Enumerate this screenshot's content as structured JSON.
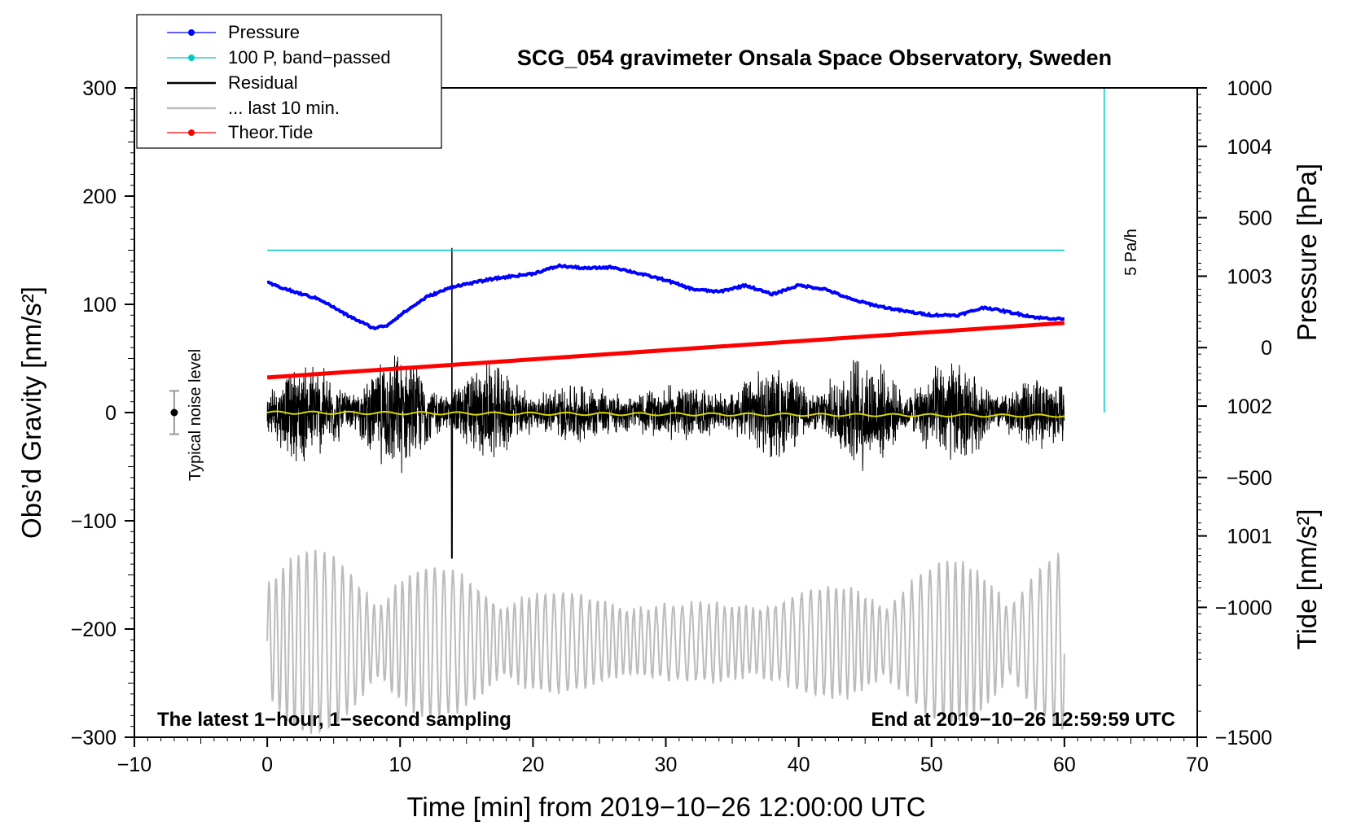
{
  "chart_data": {
    "type": "line",
    "title": "SCG_054 gravimeter Onsala Space Observatory, Sweden",
    "xlabel": "Time [min] from 2019−10−26 12:00:00 UTC",
    "ylabel": "Obs’d Gravity [nm/s²]",
    "ylabel_right_upper": "Pressure [hPa]",
    "ylabel_right_lower": "Tide [nm/s²]",
    "xlim": [
      -10,
      70
    ],
    "ylim": [
      -300,
      300
    ],
    "x_ticks": [
      -10,
      0,
      10,
      20,
      30,
      40,
      50,
      60,
      70
    ],
    "x_tick_labels": [
      "−10",
      "0",
      "10",
      "20",
      "30",
      "40",
      "50",
      "60",
      "70"
    ],
    "y_ticks": [
      300,
      200,
      100,
      0,
      -100,
      -200,
      -300
    ],
    "y_tick_labels": [
      "300",
      "200",
      "100",
      "0",
      "−100",
      "−200",
      "−300"
    ],
    "pressure_ticks": [
      1004,
      1003,
      1002,
      1001
    ],
    "pressure_tick_labels": [
      "1004",
      "1003",
      "1002",
      "1001"
    ],
    "pressure_axis_range_hPa": [
      999.45,
      1004.45
    ],
    "tide_ticks": [
      1000,
      500,
      0,
      -500,
      -1000,
      -1500
    ],
    "tide_tick_labels": [
      "1000",
      "500",
      "0",
      "−500",
      "−1000",
      "−1500"
    ],
    "tide_axis_range_nm_s2": [
      -1500,
      1000
    ],
    "legend": [
      {
        "label": "Pressure",
        "color": "#0000ff",
        "marker": true
      },
      {
        "label": "100 P, band−passed",
        "color": "#00c8c8",
        "marker": true
      },
      {
        "label": "Residual",
        "color": "#000000",
        "marker": false
      },
      {
        "label": "... last 10 min.",
        "color": "#bbbbbb",
        "marker": false
      },
      {
        "label": "Theor.Tide",
        "color": "#ff0000",
        "marker": true
      }
    ],
    "series": [
      {
        "name": "Pressure",
        "unit": "hPa",
        "color": "#0000ff",
        "x": [
          0,
          2,
          4,
          6,
          8,
          9,
          10,
          12,
          14,
          17,
          20,
          22,
          24,
          26,
          28,
          30,
          32,
          34,
          36,
          38,
          40,
          42,
          44,
          46,
          48,
          50,
          52,
          54,
          56,
          58,
          60
        ],
        "values": [
          1002.95,
          1002.88,
          1002.82,
          1002.7,
          1002.6,
          1002.62,
          1002.7,
          1002.84,
          1002.92,
          1002.98,
          1003.02,
          1003.08,
          1003.06,
          1003.07,
          1003.02,
          1002.97,
          1002.9,
          1002.88,
          1002.93,
          1002.86,
          1002.93,
          1002.9,
          1002.82,
          1002.77,
          1002.73,
          1002.7,
          1002.7,
          1002.76,
          1002.72,
          1002.68,
          1002.67
        ]
      },
      {
        "name": "100 P, band−passed",
        "unit": "nm/s²",
        "color": "#00c8c8",
        "x": [
          0,
          60
        ],
        "values": [
          150,
          150
        ]
      },
      {
        "name": "Residual",
        "unit": "nm/s²",
        "color": "#000000",
        "x": [
          0,
          60
        ],
        "envelope_note": "1-second noisy residual, peaks near minute 13.9",
        "max": 152,
        "min": -135
      },
      {
        "name": "... last 10 min.",
        "unit": "nm/s²",
        "color": "#bbbbbb",
        "x": [
          0,
          60
        ],
        "center": -212,
        "amplitude_max": 85
      },
      {
        "name": "Theor.Tide",
        "unit": "nm/s²",
        "color": "#ff0000",
        "x": [
          0,
          60
        ],
        "values": [
          -115,
          95
        ]
      },
      {
        "name": "Mean residual",
        "unit": "nm/s²",
        "color": "#d8d800",
        "x": [
          0,
          60
        ],
        "values": [
          0,
          -3
        ]
      }
    ],
    "pa_rate_marker": {
      "label": "5 Pa/h",
      "x": 63,
      "y_range": [
        0,
        300
      ],
      "color": "#00c8c8"
    },
    "noise_marker": {
      "label": "Typical noise level",
      "x": -7,
      "center": 0,
      "half_width": 20
    },
    "footer_left": "The latest 1−hour, 1−second sampling",
    "footer_right": "End at 2019−10−26 12:59:59 UTC",
    "grid": false
  }
}
